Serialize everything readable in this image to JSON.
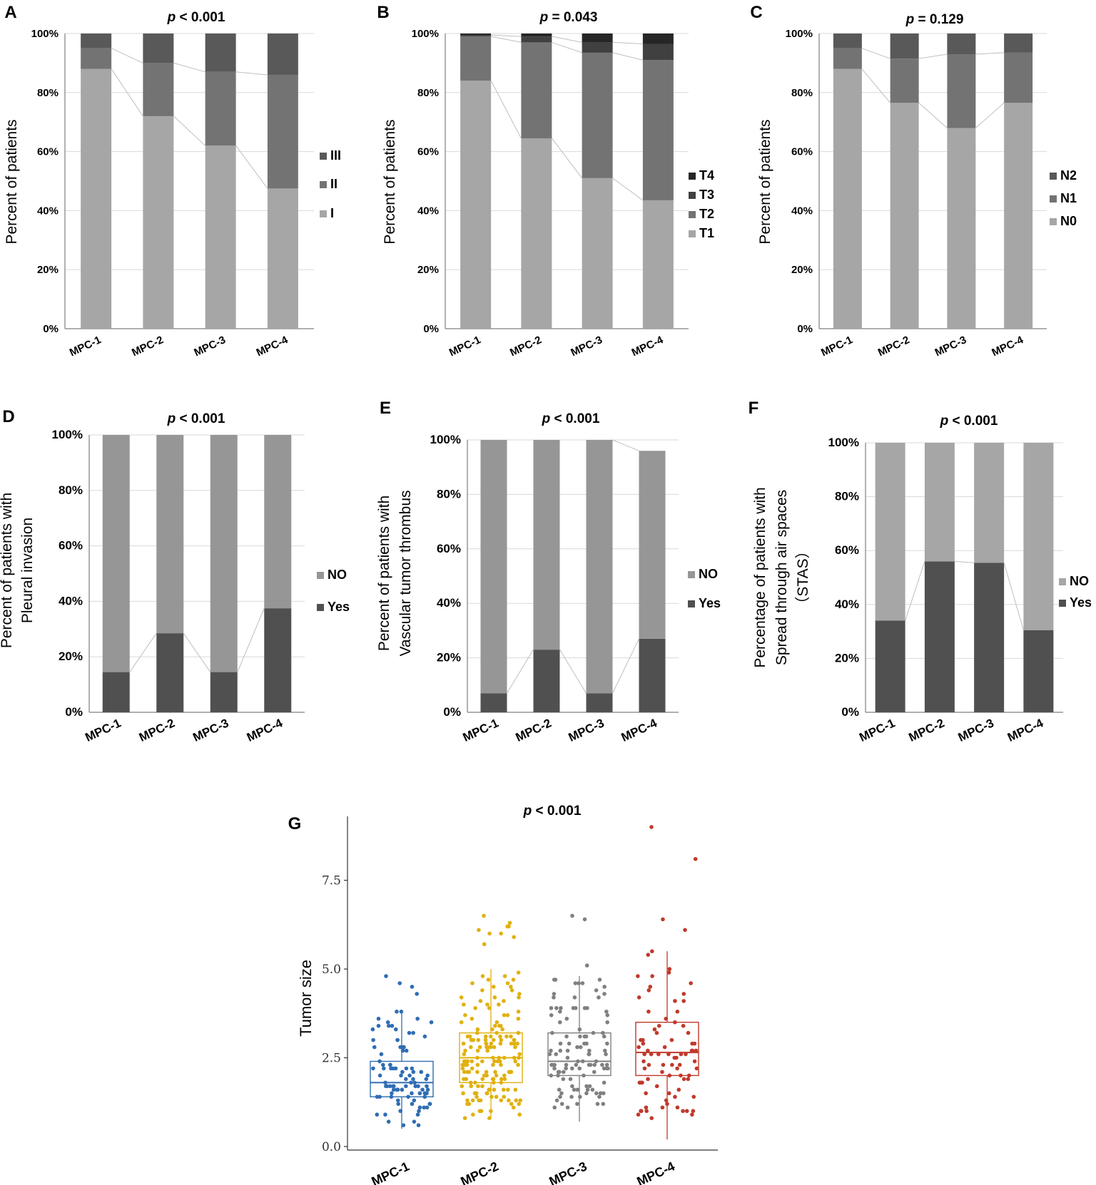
{
  "chart_data": [
    {
      "panel": "A",
      "type": "bar",
      "stacked": true,
      "title_prefix": "p",
      "title_rest": " < 0.001",
      "ylabel": "Percent of patients",
      "categories": [
        "MPC-1",
        "MPC-2",
        "MPC-3",
        "MPC-4"
      ],
      "yticks": [
        "0%",
        "20%",
        "40%",
        "60%",
        "80%",
        "100%"
      ],
      "ylim": [
        0,
        100
      ],
      "series": [
        {
          "name": "I",
          "color": "#a6a6a6",
          "values": [
            88,
            72,
            62,
            47.5
          ]
        },
        {
          "name": "II",
          "color": "#737373",
          "values": [
            7,
            18,
            25,
            38.5
          ]
        },
        {
          "name": "III",
          "color": "#595959",
          "values": [
            5,
            10,
            13,
            14
          ]
        }
      ]
    },
    {
      "panel": "B",
      "type": "bar",
      "stacked": true,
      "title_prefix": "p",
      "title_rest": " = 0.043",
      "ylabel": "Percent of patients",
      "categories": [
        "MPC-1",
        "MPC-2",
        "MPC-3",
        "MPC-4"
      ],
      "yticks": [
        "0%",
        "20%",
        "40%",
        "60%",
        "80%",
        "100%"
      ],
      "ylim": [
        0,
        100
      ],
      "series": [
        {
          "name": "T1",
          "color": "#a6a6a6",
          "values": [
            84,
            64.5,
            51,
            43.5
          ]
        },
        {
          "name": "T2",
          "color": "#737373",
          "values": [
            15,
            32.5,
            42.5,
            47.5
          ]
        },
        {
          "name": "T3",
          "color": "#404040",
          "values": [
            0.5,
            2,
            3.5,
            5.5
          ]
        },
        {
          "name": "T4",
          "color": "#262626",
          "values": [
            0.5,
            1,
            3,
            3.5
          ]
        }
      ]
    },
    {
      "panel": "C",
      "type": "bar",
      "stacked": true,
      "title_prefix": "p",
      "title_rest": " = 0.129",
      "ylabel": "Percent of patients",
      "categories": [
        "MPC-1",
        "MPC-2",
        "MPC-3",
        "MPC-4"
      ],
      "yticks": [
        "0%",
        "20%",
        "40%",
        "60%",
        "80%",
        "100%"
      ],
      "ylim": [
        0,
        100
      ],
      "series": [
        {
          "name": "N0",
          "color": "#a6a6a6",
          "values": [
            88,
            76.5,
            68,
            76.5
          ]
        },
        {
          "name": "N1",
          "color": "#737373",
          "values": [
            7,
            15,
            25,
            17
          ]
        },
        {
          "name": "N2",
          "color": "#595959",
          "values": [
            5,
            8.5,
            7,
            6.5
          ]
        }
      ]
    },
    {
      "panel": "D",
      "type": "bar",
      "stacked": true,
      "title_prefix": "p",
      "title_rest": " < 0.001",
      "ylabel": "Percent of patients with",
      "ylabel2": "Pleural invasion",
      "categories": [
        "MPC-1",
        "MPC-2",
        "MPC-3",
        "MPC-4"
      ],
      "yticks": [
        "0%",
        "20%",
        "40%",
        "60%",
        "80%",
        "100%"
      ],
      "ylim": [
        0,
        100
      ],
      "series": [
        {
          "name": "Yes",
          "color": "#505050",
          "values": [
            14.5,
            28.5,
            14.5,
            37.5
          ]
        },
        {
          "name": "NO",
          "color": "#969696",
          "values": [
            85.5,
            71.5,
            85.5,
            62.5
          ]
        }
      ]
    },
    {
      "panel": "E",
      "type": "bar",
      "stacked": true,
      "title_prefix": "p",
      "title_rest": " < 0.001",
      "ylabel": "Percent of patients with",
      "ylabel2": "Vascular tumor thrombus",
      "categories": [
        "MPC-1",
        "MPC-2",
        "MPC-3",
        "MPC-4"
      ],
      "yticks": [
        "0%",
        "20%",
        "40%",
        "60%",
        "80%",
        "100%"
      ],
      "ylim": [
        0,
        100
      ],
      "series": [
        {
          "name": "Yes",
          "color": "#505050",
          "values": [
            7,
            23,
            7,
            27
          ]
        },
        {
          "name": "NO",
          "color": "#969696",
          "values": [
            93,
            77,
            93,
            69
          ]
        }
      ]
    },
    {
      "panel": "F",
      "type": "bar",
      "stacked": true,
      "title_prefix": "p",
      "title_rest": " < 0.001",
      "ylabel": "Percentage of patients with",
      "ylabel2": "Spread through air spaces",
      "ylabel3": "（STAS）",
      "categories": [
        "MPC-1",
        "MPC-2",
        "MPC-3",
        "MPC-4"
      ],
      "yticks": [
        "0%",
        "20%",
        "40%",
        "60%",
        "80%",
        "100%"
      ],
      "ylim": [
        0,
        100
      ],
      "series": [
        {
          "name": "Yes",
          "color": "#505050",
          "values": [
            34,
            56,
            55.5,
            30.5
          ]
        },
        {
          "name": "NO",
          "color": "#a6a6a6",
          "values": [
            66,
            44,
            44.5,
            69.5
          ]
        }
      ]
    },
    {
      "panel": "G",
      "type": "box",
      "title_prefix": "p",
      "title_rest": " < 0.001",
      "ylabel": "Tumor size",
      "categories": [
        "MPC-1",
        "MPC-2",
        "MPC-3",
        "MPC-4"
      ],
      "yticks": [
        "0.0",
        "2.5",
        "5.0",
        "7.5"
      ],
      "ylim": [
        -0.1,
        9.3
      ],
      "groups": [
        {
          "name": "MPC-1",
          "color": "#2f6db3",
          "q1": 1.4,
          "median": 1.8,
          "q3": 2.4,
          "whisker_low": 0.5,
          "whisker_high": 3.8,
          "n": 95,
          "max_point": 4.8
        },
        {
          "name": "MPC-2",
          "color": "#e0b10e",
          "q1": 1.8,
          "median": 2.5,
          "q3": 3.2,
          "whisker_low": 0.8,
          "whisker_high": 5.0,
          "n": 170,
          "max_point": 6.5
        },
        {
          "name": "MPC-3",
          "color": "#808080",
          "q1": 2.0,
          "median": 2.4,
          "q3": 3.2,
          "whisker_low": 0.7,
          "whisker_high": 4.8,
          "n": 110,
          "max_point": 6.5
        },
        {
          "name": "MPC-4",
          "color": "#c0392b",
          "q1": 2.0,
          "median": 2.65,
          "q3": 3.5,
          "whisker_low": 0.2,
          "whisker_high": 5.5,
          "n": 85,
          "max_point": 9.0
        }
      ]
    }
  ]
}
